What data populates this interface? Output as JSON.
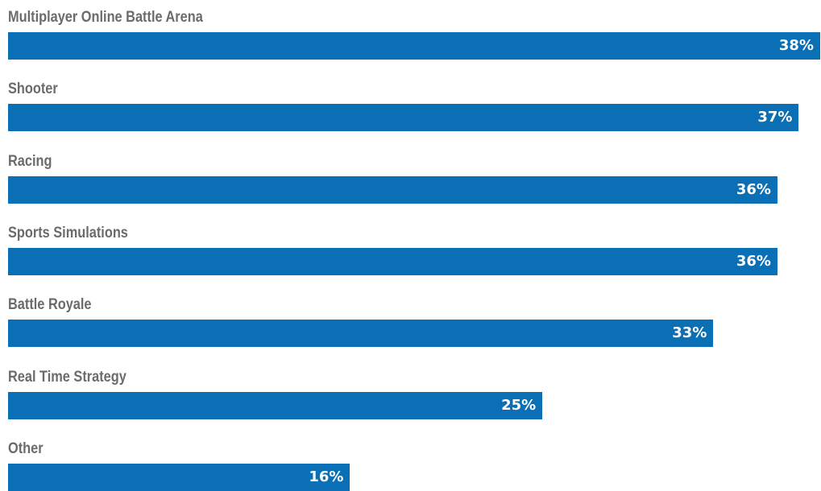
{
  "chart_data": {
    "type": "bar",
    "orientation": "horizontal",
    "categories": [
      "Multiplayer Online Battle Arena",
      "Shooter",
      "Racing",
      "Sports Simulations",
      "Battle Royale",
      "Real Time Strategy",
      "Other"
    ],
    "values": [
      38,
      37,
      36,
      36,
      33,
      25,
      16
    ],
    "value_labels": [
      "38%",
      "37%",
      "36%",
      "36%",
      "33%",
      "25%",
      "16%"
    ],
    "unit": "%",
    "xlim": [
      0,
      38
    ],
    "grid": false,
    "legend": "none",
    "colors": {
      "bar": "#0a6fb4",
      "label_text": "#6b6b6b",
      "value_text": "#ffffff"
    }
  }
}
